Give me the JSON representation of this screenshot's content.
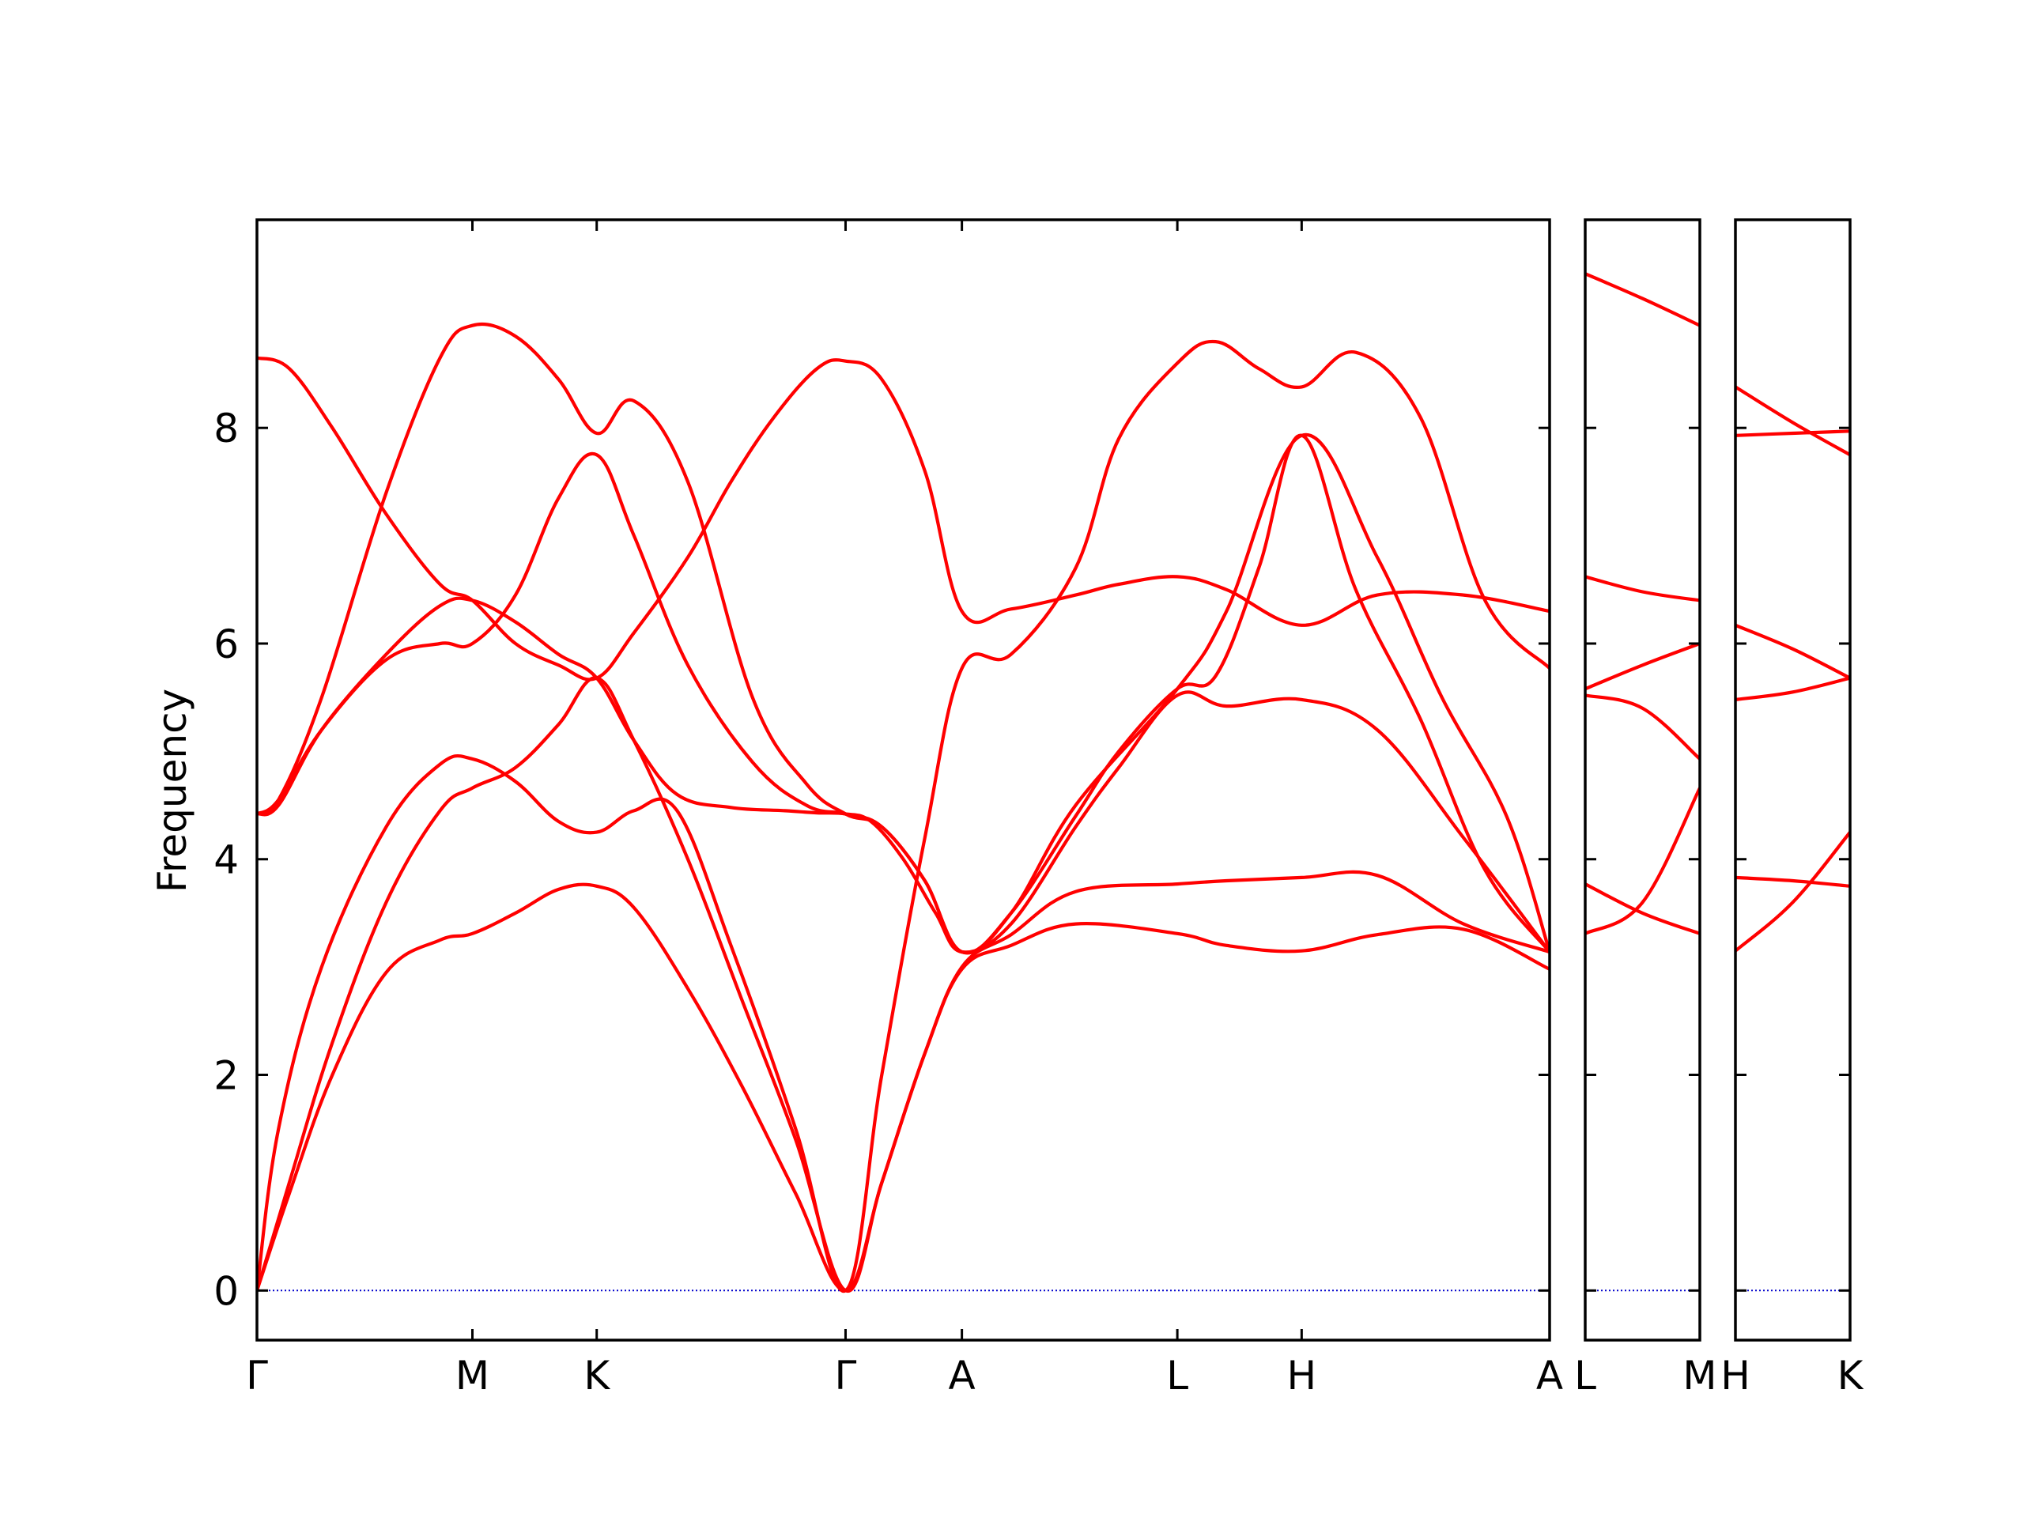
{
  "chart_data": {
    "type": "line",
    "ylabel": "Frequency",
    "ylim": [
      -0.46,
      9.93
    ],
    "yticks": [
      0,
      2,
      4,
      6,
      8
    ],
    "ytick_labels": [
      "0",
      "2",
      "4",
      "6",
      "8"
    ],
    "grid": false,
    "zero_line_color": "#0000cc",
    "band_color": "#ff0000",
    "panels": [
      {
        "path": [
          "Γ",
          "M",
          "K",
          "Γ",
          "A",
          "L",
          "H",
          "A"
        ],
        "xlim": [
          0,
          6.0
        ],
        "xticks": [
          0,
          1.0,
          1.577,
          2.732,
          3.272,
          4.272,
          4.849,
          6.0
        ],
        "bands": [
          {
            "x": [
              0,
              0.15,
              0.35,
              0.6,
              0.85,
              1.0,
              1.2,
              1.4,
              1.577,
              1.75,
              2.0,
              2.25,
              2.5,
              2.732,
              2.9,
              3.1,
              3.272,
              3.5,
              3.8,
              4.272,
              4.5,
              4.849,
              5.2,
              5.6,
              6.0
            ],
            "y": [
              0,
              0.9,
              2.0,
              2.95,
              3.25,
              3.31,
              3.5,
              3.72,
              3.75,
              3.55,
              2.8,
              1.9,
              0.9,
              0,
              1.0,
              2.2,
              2.98,
              3.2,
              3.4,
              3.31,
              3.2,
              3.15,
              3.3,
              3.35,
              2.98
            ]
          },
          {
            "x": [
              0,
              0.15,
              0.35,
              0.6,
              0.85,
              1.0,
              1.2,
              1.4,
              1.577,
              1.75,
              2.0,
              2.25,
              2.5,
              2.732,
              2.9,
              3.1,
              3.272,
              3.5,
              3.8,
              4.272,
              4.5,
              4.849,
              5.2,
              5.6,
              6.0
            ],
            "y": [
              0,
              1.0,
              2.3,
              3.6,
              4.45,
              4.66,
              4.85,
              5.25,
              5.68,
              5.1,
              4.0,
              2.7,
              1.4,
              0,
              1.0,
              2.2,
              3.0,
              3.3,
              3.7,
              3.77,
              3.8,
              3.83,
              3.85,
              3.4,
              3.14
            ]
          },
          {
            "x": [
              0,
              0.1,
              0.3,
              0.6,
              0.85,
              1.0,
              1.2,
              1.4,
              1.577,
              1.75,
              1.95,
              2.2,
              2.5,
              2.732,
              2.9,
              3.1,
              3.272,
              3.5,
              3.8,
              4.0,
              4.272,
              4.45,
              4.65,
              4.849,
              5.1,
              5.4,
              5.7,
              6.0
            ],
            "y": [
              0,
              1.5,
              3.0,
              4.3,
              4.88,
              4.93,
              4.72,
              4.35,
              4.25,
              4.45,
              4.45,
              3.2,
              1.5,
              0,
              2.0,
              4.2,
              5.77,
              5.9,
              6.7,
              7.9,
              8.6,
              8.8,
              8.55,
              8.38,
              8.7,
              8.1,
              6.4,
              5.77
            ]
          },
          {
            "x": [
              0,
              0.1,
              0.3,
              0.6,
              0.85,
              1.0,
              1.2,
              1.4,
              1.577,
              1.75,
              1.95,
              2.2,
              2.45,
              2.6,
              2.732,
              2.85,
              3.0,
              3.15,
              3.272,
              3.5,
              3.8,
              4.0,
              4.272,
              4.5,
              4.849,
              5.2,
              5.6,
              6.0
            ],
            "y": [
              4.42,
              4.5,
              5.2,
              5.9,
              6.35,
              6.4,
              6.2,
              5.9,
              5.68,
              5.1,
              4.6,
              4.48,
              4.45,
              4.43,
              4.42,
              4.35,
              4.0,
              3.5,
              3.14,
              3.4,
              4.3,
              4.85,
              5.52,
              5.42,
              5.48,
              5.2,
              4.2,
              3.14
            ]
          },
          {
            "x": [
              0,
              0.1,
              0.3,
              0.6,
              0.85,
              1.0,
              1.2,
              1.4,
              1.577,
              1.75,
              2.0,
              2.3,
              2.55,
              2.732,
              2.9,
              3.1,
              3.272,
              3.5,
              3.8,
              4.272,
              4.5,
              4.849,
              5.2,
              5.5,
              5.8,
              6.0
            ],
            "y": [
              4.42,
              4.55,
              5.2,
              5.85,
              6.0,
              6.0,
              6.45,
              7.35,
              7.75,
              7.0,
              5.8,
              4.9,
              4.5,
              4.42,
              4.3,
              3.8,
              3.14,
              3.5,
              4.5,
              5.58,
              6.3,
              7.93,
              6.8,
              5.5,
              4.4,
              3.14
            ]
          },
          {
            "x": [
              0,
              0.15,
              0.35,
              0.6,
              0.85,
              1.0,
              1.2,
              1.4,
              1.577,
              1.75,
              2.0,
              2.2,
              2.4,
              2.6,
              2.732,
              2.9,
              3.1,
              3.272,
              3.5,
              3.8,
              4.0,
              4.272,
              4.5,
              4.849,
              5.2,
              5.6,
              6.0
            ],
            "y": [
              8.65,
              8.55,
              8.0,
              7.2,
              6.55,
              6.4,
              6.0,
              5.8,
              5.68,
              6.1,
              6.8,
              7.5,
              8.1,
              8.55,
              8.62,
              8.45,
              7.6,
              6.3,
              6.32,
              6.45,
              6.55,
              6.62,
              6.5,
              6.17,
              6.45,
              6.45,
              6.3
            ]
          },
          {
            "x": [
              0,
              0.1,
              0.3,
              0.6,
              0.85,
              1.0,
              1.2,
              1.4,
              1.577,
              1.75,
              2.0,
              2.3,
              2.55,
              2.732,
              2.9,
              3.1,
              3.272,
              3.5,
              3.8,
              4.0,
              4.272,
              4.45,
              4.65,
              4.849,
              5.1,
              5.4,
              5.7,
              6.0
            ],
            "y": [
              4.42,
              4.55,
              5.5,
              7.4,
              8.65,
              8.95,
              8.85,
              8.45,
              7.95,
              8.25,
              7.5,
              5.5,
              4.7,
              4.42,
              4.3,
              3.8,
              3.14,
              3.5,
              4.4,
              5.0,
              5.58,
              5.7,
              6.7,
              7.93,
              6.5,
              5.3,
              3.9,
              3.14
            ]
          }
        ]
      },
      {
        "path": [
          "L",
          "M"
        ],
        "xlim": [
          0,
          1.0
        ],
        "xticks": [
          0,
          1.0
        ],
        "bands": [
          {
            "x": [
              0,
              0.5,
              1.0
            ],
            "y": [
              3.31,
              3.6,
              4.66
            ]
          },
          {
            "x": [
              0,
              0.5,
              1.0
            ],
            "y": [
              3.77,
              3.5,
              3.31
            ]
          },
          {
            "x": [
              0,
              0.5,
              1.0
            ],
            "y": [
              5.52,
              5.4,
              4.93
            ]
          },
          {
            "x": [
              0,
              0.5,
              1.0
            ],
            "y": [
              5.58,
              5.8,
              6.0
            ]
          },
          {
            "x": [
              0,
              0.5,
              1.0
            ],
            "y": [
              6.62,
              6.48,
              6.4
            ]
          },
          {
            "x": [
              0,
              0.5,
              1.0
            ],
            "y": [
              9.43,
              9.2,
              8.95
            ]
          }
        ]
      },
      {
        "path": [
          "H",
          "K"
        ],
        "xlim": [
          0,
          1.0
        ],
        "xticks": [
          0,
          1.0
        ],
        "bands": [
          {
            "x": [
              0,
              0.5,
              1.0
            ],
            "y": [
              3.15,
              3.6,
              4.25
            ]
          },
          {
            "x": [
              0,
              0.5,
              1.0
            ],
            "y": [
              3.83,
              3.8,
              3.75
            ]
          },
          {
            "x": [
              0,
              0.5,
              1.0
            ],
            "y": [
              5.48,
              5.55,
              5.68
            ]
          },
          {
            "x": [
              0,
              0.5,
              1.0
            ],
            "y": [
              6.17,
              5.95,
              5.68
            ]
          },
          {
            "x": [
              0,
              0.5,
              1.0
            ],
            "y": [
              7.93,
              7.95,
              7.97
            ]
          },
          {
            "x": [
              0,
              0.5,
              1.0
            ],
            "y": [
              8.38,
              8.05,
              7.75
            ]
          }
        ]
      }
    ]
  }
}
